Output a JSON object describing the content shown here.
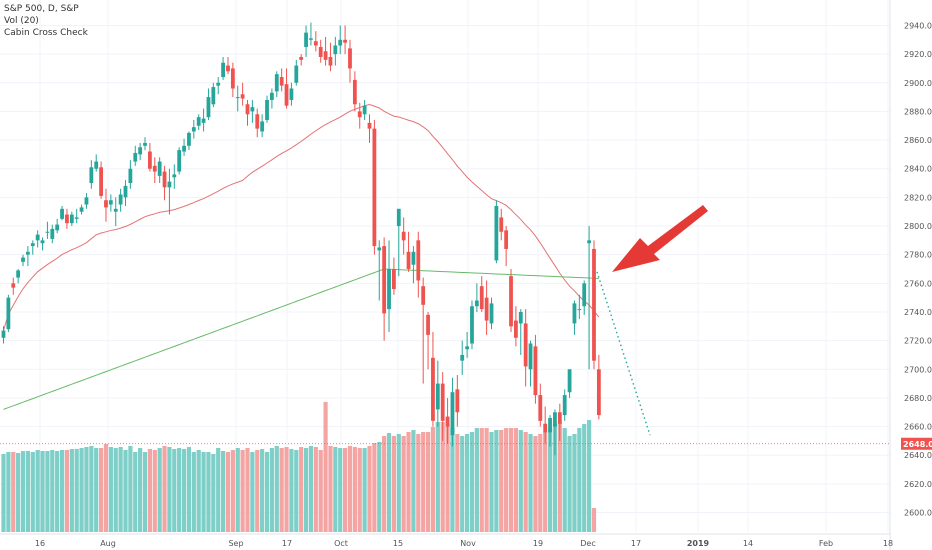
{
  "legend": {
    "symbol_line": "S&P 500, D, S&P",
    "volume_line": "Vol (20)",
    "indicator_line": "Cabin Cross Check"
  },
  "current_price_label": "2648.01",
  "colors": {
    "up": "#26a69a",
    "down": "#ef5350",
    "up_volume": "#7ecfc7",
    "down_volume": "#f4a5a3",
    "ma_fast": "#e57373",
    "ma_slow": "#66bb6a",
    "arrow": "#e53935",
    "projection": "#26a69a",
    "price_line": "#ef5350"
  },
  "chart_data": {
    "type": "candlestick",
    "title": "S&P 500, D, S&P",
    "y_axis": {
      "min": 2592,
      "max": 2948,
      "ticks": [
        2940,
        2920,
        2900,
        2880,
        2860,
        2840,
        2820,
        2800,
        2780,
        2760,
        2740,
        2720,
        2700,
        2680,
        2660,
        2640,
        2620,
        2600
      ]
    },
    "x_ticks": [
      {
        "label": "16",
        "bold": false
      },
      {
        "label": "Aug",
        "bold": false
      },
      {
        "label": "Sep",
        "bold": false
      },
      {
        "label": "17",
        "bold": false
      },
      {
        "label": "Oct",
        "bold": false
      },
      {
        "label": "15",
        "bold": false
      },
      {
        "label": "Nov",
        "bold": false
      },
      {
        "label": "19",
        "bold": false
      },
      {
        "label": "Dec",
        "bold": false
      },
      {
        "label": "17",
        "bold": false
      },
      {
        "label": "2019",
        "bold": true
      },
      {
        "label": "14",
        "bold": false
      },
      {
        "label": "Feb",
        "bold": false
      },
      {
        "label": "18",
        "bold": false
      }
    ],
    "current_price": 2648.01,
    "candles": [
      [
        2722,
        2730,
        2718,
        2727
      ],
      [
        2728,
        2752,
        2726,
        2750
      ],
      [
        2760,
        2764,
        2752,
        2757
      ],
      [
        2764,
        2770,
        2760,
        2769
      ],
      [
        2775,
        2780,
        2772,
        2778
      ],
      [
        2780,
        2786,
        2772,
        2782
      ],
      [
        2786,
        2790,
        2780,
        2788
      ],
      [
        2790,
        2797,
        2785,
        2794
      ],
      [
        2788,
        2792,
        2783,
        2790
      ],
      [
        2796,
        2803,
        2791,
        2796
      ],
      [
        2791,
        2801,
        2788,
        2798
      ],
      [
        2797,
        2805,
        2795,
        2801
      ],
      [
        2805,
        2814,
        2804,
        2812
      ],
      [
        2808,
        2812,
        2798,
        2802
      ],
      [
        2802,
        2810,
        2800,
        2808
      ],
      [
        2805,
        2812,
        2802,
        2806
      ],
      [
        2810,
        2815,
        2808,
        2813
      ],
      [
        2815,
        2823,
        2812,
        2820
      ],
      [
        2830,
        2846,
        2826,
        2841
      ],
      [
        2840,
        2850,
        2838,
        2845
      ],
      [
        2841,
        2845,
        2819,
        2821
      ],
      [
        2818,
        2826,
        2803,
        2813
      ],
      [
        2815,
        2822,
        2810,
        2818
      ],
      [
        2810,
        2820,
        2800,
        2812
      ],
      [
        2815,
        2826,
        2810,
        2822
      ],
      [
        2820,
        2832,
        2814,
        2828
      ],
      [
        2830,
        2846,
        2826,
        2840
      ],
      [
        2845,
        2856,
        2842,
        2851
      ],
      [
        2850,
        2858,
        2846,
        2855
      ],
      [
        2856,
        2862,
        2853,
        2858
      ],
      [
        2852,
        2858,
        2838,
        2840
      ],
      [
        2842,
        2848,
        2830,
        2838
      ],
      [
        2835,
        2848,
        2830,
        2845
      ],
      [
        2838,
        2842,
        2818,
        2827
      ],
      [
        2827,
        2840,
        2808,
        2831
      ],
      [
        2834,
        2843,
        2826,
        2836
      ],
      [
        2838,
        2855,
        2836,
        2853
      ],
      [
        2852,
        2861,
        2849,
        2856
      ],
      [
        2856,
        2866,
        2853,
        2865
      ],
      [
        2866,
        2874,
        2861,
        2869
      ],
      [
        2870,
        2878,
        2867,
        2876
      ],
      [
        2872,
        2882,
        2866,
        2875
      ],
      [
        2876,
        2896,
        2874,
        2890
      ],
      [
        2885,
        2900,
        2883,
        2897
      ],
      [
        2898,
        2904,
        2892,
        2900
      ],
      [
        2904,
        2918,
        2902,
        2914
      ],
      [
        2912,
        2918,
        2906,
        2908
      ],
      [
        2910,
        2914,
        2890,
        2896
      ],
      [
        2890,
        2898,
        2880,
        2890
      ],
      [
        2892,
        2900,
        2884,
        2889
      ],
      [
        2885,
        2888,
        2870,
        2878
      ],
      [
        2880,
        2888,
        2872,
        2883
      ],
      [
        2878,
        2882,
        2862,
        2868
      ],
      [
        2866,
        2878,
        2862,
        2873
      ],
      [
        2874,
        2891,
        2872,
        2888
      ],
      [
        2888,
        2896,
        2882,
        2893
      ],
      [
        2894,
        2908,
        2890,
        2906
      ],
      [
        2904,
        2910,
        2894,
        2898
      ],
      [
        2899,
        2910,
        2882,
        2884
      ],
      [
        2888,
        2900,
        2884,
        2896
      ],
      [
        2900,
        2916,
        2898,
        2912
      ],
      [
        2918,
        2920,
        2912,
        2916
      ],
      [
        2925,
        2940,
        2918,
        2935
      ],
      [
        2930,
        2942,
        2926,
        2931
      ],
      [
        2929,
        2936,
        2922,
        2926
      ],
      [
        2925,
        2930,
        2914,
        2918
      ],
      [
        2922,
        2932,
        2912,
        2916
      ],
      [
        2918,
        2928,
        2908,
        2912
      ],
      [
        2920,
        2932,
        2912,
        2926
      ],
      [
        2926,
        2940,
        2920,
        2930
      ],
      [
        2930,
        2940,
        2920,
        2928
      ],
      [
        2924,
        2930,
        2900,
        2910
      ],
      [
        2902,
        2908,
        2880,
        2885
      ],
      [
        2880,
        2886,
        2868,
        2876
      ],
      [
        2878,
        2888,
        2874,
        2884
      ],
      [
        2872,
        2878,
        2858,
        2868
      ],
      [
        2868,
        2874,
        2780,
        2786
      ],
      [
        2783,
        2790,
        2748,
        2785
      ],
      [
        2786,
        2792,
        2720,
        2739
      ],
      [
        2742,
        2790,
        2726,
        2770
      ],
      [
        2770,
        2778,
        2752,
        2756
      ],
      [
        2800,
        2812,
        2765,
        2812
      ],
      [
        2796,
        2806,
        2780,
        2790
      ],
      [
        2782,
        2796,
        2768,
        2770
      ],
      [
        2773,
        2786,
        2760,
        2782
      ],
      [
        2790,
        2796,
        2750,
        2762
      ],
      [
        2758,
        2764,
        2690,
        2745
      ],
      [
        2738,
        2740,
        2700,
        2724
      ],
      [
        2708,
        2726,
        2660,
        2664
      ],
      [
        2672,
        2706,
        2660,
        2690
      ],
      [
        2690,
        2698,
        2650,
        2664
      ],
      [
        2667,
        2680,
        2648,
        2660
      ],
      [
        2654,
        2694,
        2646,
        2684
      ],
      [
        2686,
        2696,
        2660,
        2670
      ],
      [
        2706,
        2720,
        2696,
        2710
      ],
      [
        2714,
        2726,
        2708,
        2716
      ],
      [
        2718,
        2748,
        2714,
        2744
      ],
      [
        2744,
        2760,
        2740,
        2748
      ],
      [
        2758,
        2765,
        2740,
        2742
      ],
      [
        2750,
        2762,
        2724,
        2734
      ],
      [
        2732,
        2750,
        2728,
        2746
      ],
      [
        2776,
        2818,
        2774,
        2814
      ],
      [
        2806,
        2812,
        2790,
        2796
      ],
      [
        2797,
        2800,
        2772,
        2784
      ],
      [
        2765,
        2770,
        2726,
        2730
      ],
      [
        2734,
        2744,
        2716,
        2722
      ],
      [
        2732,
        2742,
        2710,
        2740
      ],
      [
        2732,
        2742,
        2688,
        2702
      ],
      [
        2700,
        2720,
        2688,
        2718
      ],
      [
        2716,
        2724,
        2676,
        2682
      ],
      [
        2682,
        2690,
        2660,
        2664
      ],
      [
        2662,
        2674,
        2648,
        2656
      ],
      [
        2656,
        2668,
        2646,
        2666
      ],
      [
        2660,
        2672,
        2640,
        2670
      ],
      [
        2670,
        2676,
        2650,
        2662
      ],
      [
        2668,
        2686,
        2664,
        2682
      ],
      [
        2684,
        2700,
        2680,
        2700
      ],
      [
        2732,
        2748,
        2724,
        2746
      ],
      [
        2742,
        2752,
        2735,
        2742
      ],
      [
        2744,
        2762,
        2738,
        2760
      ],
      [
        2788,
        2800,
        2700,
        2790
      ],
      [
        2784,
        2790,
        2700,
        2706
      ],
      [
        2700,
        2710,
        2665,
        2668
      ]
    ],
    "volume": [
      78,
      80,
      80,
      79,
      81,
      81,
      80,
      82,
      81,
      81,
      82,
      81,
      82,
      82,
      83,
      83,
      84,
      85,
      86,
      84,
      84,
      88,
      85,
      84,
      85,
      82,
      86,
      80,
      84,
      80,
      83,
      82,
      84,
      86,
      85,
      83,
      84,
      83,
      85,
      80,
      82,
      80,
      80,
      78,
      84,
      81,
      80,
      82,
      84,
      82,
      84,
      80,
      82,
      83,
      80,
      84,
      86,
      84,
      85,
      83,
      82,
      85,
      84,
      86,
      85,
      82,
      130,
      86,
      85,
      84,
      84,
      86,
      85,
      84,
      84,
      86,
      89,
      90,
      96,
      99,
      96,
      98,
      96,
      100,
      102,
      98,
      100,
      100,
      105,
      110,
      110,
      108,
      104,
      98,
      96,
      98,
      100,
      104,
      104,
      104,
      100,
      102,
      102,
      104,
      104,
      104,
      102,
      100,
      98,
      96,
      98,
      100,
      104,
      108,
      110,
      104,
      96,
      98,
      104,
      108,
      112,
      24
    ]
  }
}
